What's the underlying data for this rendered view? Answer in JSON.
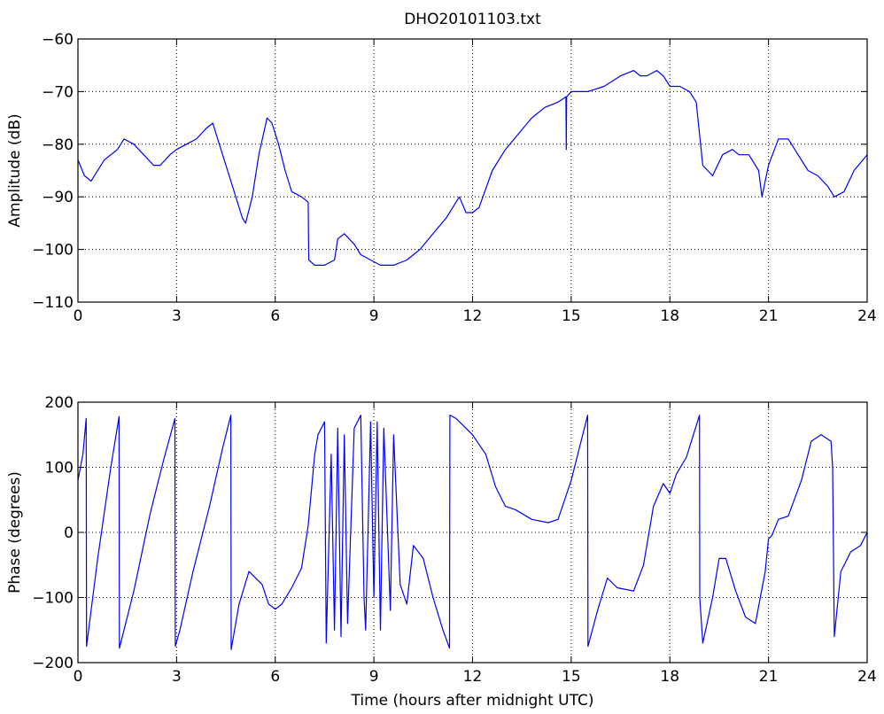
{
  "chart_data": [
    {
      "type": "line",
      "title": "DHO20101103.txt",
      "xlabel": "",
      "ylabel": "Amplitude (dB)",
      "xlim": [
        0,
        24
      ],
      "ylim": [
        -110,
        -60
      ],
      "xticks": [
        0,
        3,
        6,
        9,
        12,
        15,
        18,
        21,
        24
      ],
      "yticks": [
        -110,
        -100,
        -90,
        -80,
        -70,
        -60
      ],
      "xtick_labels": [
        "0",
        "3",
        "6",
        "9",
        "12",
        "15",
        "18",
        "21",
        "24"
      ],
      "ytick_labels": [
        "−110",
        "−100",
        "−90",
        "−80",
        "−70",
        "−60"
      ],
      "grid": true,
      "color": "#0000ff",
      "series": [
        {
          "x": [
            0,
            0.2,
            0.4,
            0.8,
            1.2,
            1.4,
            1.7,
            2.0,
            2.3,
            2.5,
            2.8,
            3.0,
            3.3,
            3.6,
            3.9,
            4.1,
            4.3,
            4.6,
            4.8,
            5.0,
            5.1,
            5.3,
            5.5,
            5.75,
            5.9,
            6.1,
            6.3,
            6.5,
            6.8,
            7.0,
            7.02,
            7.2,
            7.5,
            7.8,
            7.9,
            8.1,
            8.4,
            8.6,
            8.9,
            9.2,
            9.6,
            10.0,
            10.4,
            10.8,
            11.2,
            11.4,
            11.6,
            11.8,
            12.0,
            12.2,
            12.6,
            13.0,
            13.4,
            13.8,
            14.2,
            14.6,
            14.84,
            14.85,
            14.86,
            15.0,
            15.5,
            16.0,
            16.5,
            16.9,
            17.1,
            17.3,
            17.6,
            17.8,
            18.0,
            18.3,
            18.6,
            18.8,
            19.0,
            19.3,
            19.6,
            19.9,
            20.1,
            20.4,
            20.7,
            20.8,
            21.0,
            21.3,
            21.6,
            21.9,
            22.2,
            22.5,
            22.8,
            23.0,
            23.3,
            23.6,
            24.0
          ],
          "y": [
            -83,
            -86,
            -87,
            -83,
            -81,
            -79,
            -80,
            -82,
            -84,
            -84,
            -82,
            -81,
            -80,
            -79,
            -77,
            -76,
            -80,
            -86,
            -90,
            -94,
            -95,
            -90,
            -82,
            -75,
            -76,
            -80,
            -85,
            -89,
            -90,
            -91,
            -102,
            -103,
            -103,
            -102,
            -98,
            -97,
            -99,
            -101,
            -102,
            -103,
            -103,
            -102,
            -100,
            -97,
            -94,
            -92,
            -90,
            -93,
            -93,
            -92,
            -85,
            -81,
            -78,
            -75,
            -73,
            -72,
            -71,
            -81,
            -71,
            -70,
            -70,
            -69,
            -67,
            -66,
            -67,
            -67,
            -66,
            -67,
            -69,
            -69,
            -70,
            -72,
            -84,
            -86,
            -82,
            -81,
            -82,
            -82,
            -85,
            -90,
            -84,
            -79,
            -79,
            -82,
            -85,
            -86,
            -88,
            -90,
            -89,
            -85,
            -82
          ]
        }
      ]
    },
    {
      "type": "line",
      "title": "",
      "xlabel": "Time (hours after midnight UTC)",
      "ylabel": "Phase (degrees)",
      "xlim": [
        0,
        24
      ],
      "ylim": [
        -200,
        200
      ],
      "xticks": [
        0,
        3,
        6,
        9,
        12,
        15,
        18,
        21,
        24
      ],
      "yticks": [
        -200,
        -100,
        0,
        100,
        200
      ],
      "xtick_labels": [
        "0",
        "3",
        "6",
        "9",
        "12",
        "15",
        "18",
        "21",
        "24"
      ],
      "ytick_labels": [
        "−200",
        "−100",
        "0",
        "100",
        "200"
      ],
      "grid": true,
      "color": "#0000ff",
      "series": [
        {
          "x": [
            0,
            0.15,
            0.25,
            0.26,
            0.3,
            0.6,
            1.0,
            1.25,
            1.26,
            1.7,
            2.2,
            2.6,
            2.95,
            2.96,
            3.1,
            3.5,
            4.0,
            4.4,
            4.65,
            4.66,
            4.9,
            5.2,
            5.6,
            5.8,
            6.0,
            6.2,
            6.5,
            6.8,
            7.0,
            7.2,
            7.3,
            7.5,
            7.55,
            7.7,
            7.8,
            7.9,
            8.0,
            8.1,
            8.2,
            8.4,
            8.6,
            8.7,
            8.75,
            8.9,
            9.0,
            9.1,
            9.2,
            9.3,
            9.5,
            9.6,
            9.8,
            10.0,
            10.2,
            10.5,
            10.8,
            11.1,
            11.3,
            11.31,
            11.5,
            11.8,
            12.0,
            12.2,
            12.4,
            12.7,
            13.0,
            13.3,
            13.8,
            14.3,
            14.6,
            15.0,
            15.3,
            15.5,
            15.51,
            15.8,
            16.1,
            16.4,
            16.9,
            17.2,
            17.5,
            17.8,
            18.0,
            18.2,
            18.5,
            18.9,
            18.91,
            19.0,
            19.3,
            19.5,
            19.7,
            20.0,
            20.3,
            20.6,
            20.9,
            21.0,
            21.1,
            21.3,
            21.6,
            22.0,
            22.3,
            22.6,
            22.9,
            22.95,
            23.0,
            23.2,
            23.5,
            23.8,
            24.0
          ],
          "y": [
            80,
            120,
            175,
            -175,
            -160,
            -40,
            100,
            178,
            -178,
            -90,
            30,
            110,
            175,
            -175,
            -150,
            -60,
            40,
            130,
            180,
            -180,
            -110,
            -60,
            -80,
            -110,
            -118,
            -110,
            -85,
            -55,
            10,
            120,
            150,
            170,
            -170,
            120,
            -150,
            160,
            -160,
            150,
            -140,
            160,
            180,
            -100,
            -150,
            170,
            -100,
            170,
            -150,
            160,
            -120,
            150,
            -80,
            -110,
            -20,
            -40,
            -100,
            -150,
            -178,
            180,
            175,
            160,
            150,
            135,
            120,
            70,
            40,
            35,
            20,
            15,
            20,
            80,
            140,
            180,
            -175,
            -120,
            -70,
            -85,
            -90,
            -50,
            40,
            75,
            60,
            90,
            115,
            180,
            -100,
            -170,
            -100,
            -40,
            -40,
            -90,
            -130,
            -140,
            -60,
            -10,
            -5,
            20,
            25,
            80,
            140,
            150,
            140,
            100,
            -160,
            -60,
            -30,
            -20,
            0
          ]
        }
      ]
    }
  ]
}
